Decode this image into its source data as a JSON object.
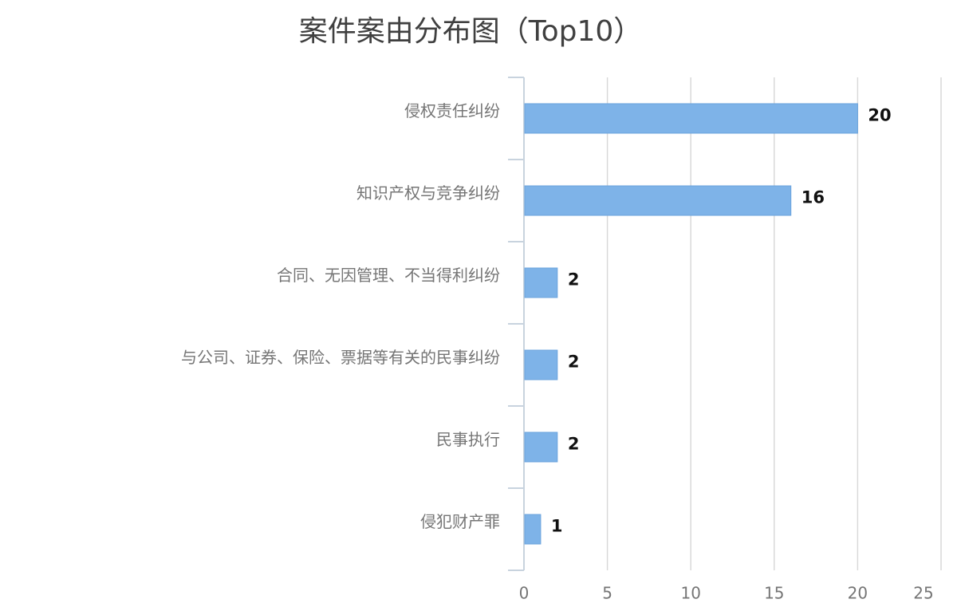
{
  "chart_data": {
    "type": "bar",
    "orientation": "horizontal",
    "title": "案件案由分布图（Top10）",
    "xlabel": "",
    "ylabel": "",
    "categories": [
      "侵权责任纠纷",
      "知识产权与竞争纠纷",
      "合同、无因管理、不当得利纠纷",
      "与公司、证券、保险、票据等有关的民事纠纷",
      "民事执行",
      "侵犯财产罪"
    ],
    "values": [
      20,
      16,
      2,
      2,
      2,
      1
    ],
    "data_labels": [
      "20",
      "16",
      "2",
      "2",
      "2",
      "1"
    ],
    "xlim": [
      0,
      25
    ],
    "xticks": [
      0,
      5,
      10,
      15,
      20,
      25
    ],
    "xtick_labels": [
      "0",
      "5",
      "10",
      "15",
      "20",
      "25"
    ],
    "grid": "vertical",
    "legend": "none",
    "bar_color": "#7EB3E8",
    "grid_color": "#D9D9D9",
    "axis_color": "#C8D3DE",
    "label_color": "#757575",
    "value_label_color": "#111111"
  }
}
